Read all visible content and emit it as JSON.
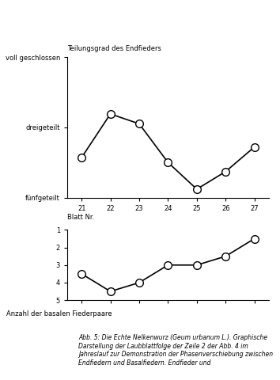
{
  "caption": "Abb. 5: Die Echte Nelkenwurz (Geum urbanum L.). Graphische Darstellung der Laubblattfolge der Zeile 2 der Abb. 4 im Jahreslauf zur Demonstration der Phasenverschiebung zwischen Endfiedern und Basalfiedern. Endfieder und",
  "chart_data": [
    {
      "type": "line",
      "title": "Teilungsgrad des Endfieders",
      "x_label": "Blatt Nr.",
      "x": [
        21,
        22,
        23,
        24,
        25,
        26,
        27
      ],
      "values": [
        3.86,
        2.62,
        2.9,
        4.0,
        4.76,
        4.26,
        3.56
      ],
      "xlim": [
        20.5,
        27.5
      ],
      "xticks": [
        21,
        22,
        23,
        24,
        25,
        26,
        27
      ],
      "ylim": [
        5,
        1
      ],
      "yticks": [
        {
          "value": 1,
          "label": "voll geschlossen"
        },
        {
          "value": 3,
          "label": "dreigeteilt"
        },
        {
          "value": 5,
          "label": "fünfgeteilt"
        }
      ],
      "color": "#000000",
      "marker": "o",
      "line_style": "solid"
    },
    {
      "type": "line",
      "y_label": "Anzahl der basalen Fiederpaare",
      "x": [
        21,
        22,
        23,
        24,
        25,
        26,
        27
      ],
      "values": [
        3.5,
        4.5,
        4.0,
        3.0,
        3.0,
        2.5,
        1.5
      ],
      "xlim": [
        20.5,
        27.5
      ],
      "xticks": [
        21,
        22,
        23,
        24,
        25,
        26,
        27
      ],
      "ylim": [
        5,
        1
      ],
      "yticks": [
        1,
        2,
        3,
        4,
        5
      ],
      "tick_labels": "y",
      "color": "#000000",
      "marker": "o",
      "line_style": "solid"
    }
  ]
}
